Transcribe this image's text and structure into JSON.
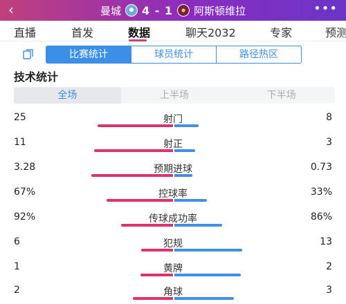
{
  "header": {
    "home_team": "曼城",
    "score": "4 - 1",
    "away_team": "阿斯顿维拉"
  },
  "tabs": [
    {
      "label": "直播",
      "active": false
    },
    {
      "label": "首发",
      "active": false
    },
    {
      "label": "数据",
      "active": true
    },
    {
      "label": "聊天2032",
      "active": false
    },
    {
      "label": "专家",
      "active": false
    },
    {
      "label": "预测",
      "active": false
    }
  ],
  "subtabs": [
    {
      "label": "比赛统计",
      "active": true
    },
    {
      "label": "球员统计",
      "active": false
    },
    {
      "label": "路径热区",
      "active": false
    }
  ],
  "section_title": "技术统计",
  "periods": [
    {
      "label": "全场",
      "active": true
    },
    {
      "label": "上半场",
      "active": false
    },
    {
      "label": "下半场",
      "active": false
    }
  ],
  "colors": {
    "home": "#e0306c",
    "away": "#3f8ee8",
    "accent": "#3c8fe6"
  },
  "stats": [
    {
      "label": "射门",
      "home": "25",
      "away": "8",
      "home_share": 0.76,
      "away_share": 0.24
    },
    {
      "label": "射正",
      "home": "11",
      "away": "3",
      "home_share": 0.79,
      "away_share": 0.21
    },
    {
      "label": "预期进球",
      "home": "3.28",
      "away": "0.73",
      "home_share": 0.82,
      "away_share": 0.18
    },
    {
      "label": "控球率",
      "home": "67%",
      "away": "33%",
      "home_share": 0.67,
      "away_share": 0.33
    },
    {
      "label": "传球成功率",
      "home": "92%",
      "away": "86%",
      "home_share": 0.52,
      "away_share": 0.48
    },
    {
      "label": "犯规",
      "home": "6",
      "away": "13",
      "home_share": 0.32,
      "away_share": 0.68
    },
    {
      "label": "黄牌",
      "home": "1",
      "away": "2",
      "home_share": 0.33,
      "away_share": 0.67
    },
    {
      "label": "角球",
      "home": "2",
      "away": "3",
      "home_share": 0.4,
      "away_share": 0.6
    }
  ]
}
